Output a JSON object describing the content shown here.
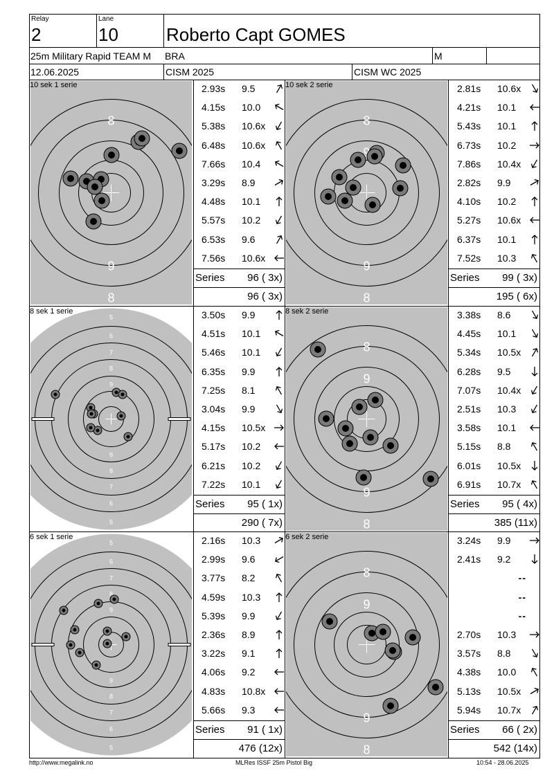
{
  "header": {
    "relay_label": "Relay",
    "relay_value": "2",
    "lane_label": "Lane",
    "lane_value": "10",
    "name": "Roberto Capt GOMES",
    "event": "25m Military Rapid TEAM M",
    "nation": "BRA",
    "gender": "M",
    "date": "12.06.2025",
    "competition": "CISM 2025",
    "championship": "CISM WC 2025"
  },
  "panels": [
    {
      "label": "10 sek 1 serie",
      "target": "big",
      "shots": [
        {
          "time": "2.93s",
          "score": "9.5",
          "arrow": "up-right"
        },
        {
          "time": "4.15s",
          "score": "10.0",
          "arrow": "left-up"
        },
        {
          "time": "5.38s",
          "score": "10.6x",
          "arrow": "down-left"
        },
        {
          "time": "6.48s",
          "score": "10.6x",
          "arrow": "up-left"
        },
        {
          "time": "7.66s",
          "score": "10.4",
          "arrow": "left-up"
        },
        {
          "time": "3.29s",
          "score": "8.9",
          "arrow": "right-up"
        },
        {
          "time": "4.48s",
          "score": "10.1",
          "arrow": "up"
        },
        {
          "time": "5.57s",
          "score": "10.2",
          "arrow": "down-left"
        },
        {
          "time": "6.53s",
          "score": "9.6",
          "arrow": "up-right"
        },
        {
          "time": "7.56s",
          "score": "10.6x",
          "arrow": "left"
        }
      ],
      "series_label": "Series",
      "series_value": "96 ( 3x)",
      "total": "96 ( 3x)"
    },
    {
      "label": "10 sek 2 serie",
      "target": "big",
      "shots": [
        {
          "time": "2.81s",
          "score": "10.6x",
          "arrow": "down-right"
        },
        {
          "time": "4.21s",
          "score": "10.1",
          "arrow": "left"
        },
        {
          "time": "5.43s",
          "score": "10.1",
          "arrow": "up"
        },
        {
          "time": "6.73s",
          "score": "10.2",
          "arrow": "right"
        },
        {
          "time": "7.86s",
          "score": "10.4x",
          "arrow": "down-left"
        },
        {
          "time": "2.82s",
          "score": "9.9",
          "arrow": "right-up"
        },
        {
          "time": "4.10s",
          "score": "10.2",
          "arrow": "up"
        },
        {
          "time": "5.27s",
          "score": "10.6x",
          "arrow": "left"
        },
        {
          "time": "6.37s",
          "score": "10.1",
          "arrow": "up"
        },
        {
          "time": "7.52s",
          "score": "10.3",
          "arrow": "up-left"
        }
      ],
      "series_label": "Series",
      "series_value": "99 ( 3x)",
      "total": "195 ( 6x)"
    },
    {
      "label": "8 sek 1 serie",
      "target": "small",
      "shots": [
        {
          "time": "3.50s",
          "score": "9.9",
          "arrow": "up"
        },
        {
          "time": "4.51s",
          "score": "10.1",
          "arrow": "left-up"
        },
        {
          "time": "5.46s",
          "score": "10.1",
          "arrow": "down-left"
        },
        {
          "time": "6.35s",
          "score": "9.9",
          "arrow": "up"
        },
        {
          "time": "7.25s",
          "score": "8.1",
          "arrow": "up-left"
        },
        {
          "time": "3.04s",
          "score": "9.9",
          "arrow": "down-right"
        },
        {
          "time": "4.15s",
          "score": "10.5x",
          "arrow": "right"
        },
        {
          "time": "5.17s",
          "score": "10.2",
          "arrow": "left"
        },
        {
          "time": "6.21s",
          "score": "10.2",
          "arrow": "down-left"
        },
        {
          "time": "7.22s",
          "score": "10.1",
          "arrow": "down-left"
        }
      ],
      "series_label": "Series",
      "series_value": "95 ( 1x)",
      "total": "290 ( 7x)"
    },
    {
      "label": "8 sek 2 serie",
      "target": "big",
      "shots": [
        {
          "time": "3.38s",
          "score": "8.6",
          "arrow": "down-right"
        },
        {
          "time": "4.45s",
          "score": "10.1",
          "arrow": "down-right"
        },
        {
          "time": "5.34s",
          "score": "10.5x",
          "arrow": "up-right"
        },
        {
          "time": "6.28s",
          "score": "9.5",
          "arrow": "down"
        },
        {
          "time": "7.07s",
          "score": "10.4x",
          "arrow": "down-left"
        },
        {
          "time": "2.51s",
          "score": "10.3",
          "arrow": "down-left"
        },
        {
          "time": "3.58s",
          "score": "10.1",
          "arrow": "left"
        },
        {
          "time": "5.15s",
          "score": "8.8",
          "arrow": "up-left"
        },
        {
          "time": "6.01s",
          "score": "10.5x",
          "arrow": "down"
        },
        {
          "time": "6.91s",
          "score": "10.7x",
          "arrow": "up-left"
        }
      ],
      "series_label": "Series",
      "series_value": "95 ( 4x)",
      "total": "385 (11x)"
    },
    {
      "label": "6 sek 1 serie",
      "target": "small",
      "shots": [
        {
          "time": "2.16s",
          "score": "10.3",
          "arrow": "right-up"
        },
        {
          "time": "2.99s",
          "score": "9.6",
          "arrow": "left-down"
        },
        {
          "time": "3.77s",
          "score": "8.2",
          "arrow": "up-left"
        },
        {
          "time": "4.59s",
          "score": "10.3",
          "arrow": "up"
        },
        {
          "time": "5.39s",
          "score": "9.9",
          "arrow": "down-left"
        },
        {
          "time": "2.36s",
          "score": "8.9",
          "arrow": "up"
        },
        {
          "time": "3.22s",
          "score": "9.1",
          "arrow": "up"
        },
        {
          "time": "4.06s",
          "score": "9.2",
          "arrow": "left"
        },
        {
          "time": "4.83s",
          "score": "10.8x",
          "arrow": "left"
        },
        {
          "time": "5.66s",
          "score": "9.3",
          "arrow": "left"
        }
      ],
      "series_label": "Series",
      "series_value": "91 ( 1x)",
      "total": "476 (12x)"
    },
    {
      "label": "6 sek 2 serie",
      "target": "big",
      "shots": [
        {
          "time": "3.24s",
          "score": "9.9",
          "arrow": "right"
        },
        {
          "time": "2.41s",
          "score": "9.2",
          "arrow": "down"
        },
        {
          "dash": "--"
        },
        {
          "dash": "--"
        },
        {
          "dash": "--"
        },
        {
          "time": "2.70s",
          "score": "10.3",
          "arrow": "right"
        },
        {
          "time": "3.57s",
          "score": "8.8",
          "arrow": "down-right"
        },
        {
          "time": "4.38s",
          "score": "10.0",
          "arrow": "up-left"
        },
        {
          "time": "5.13s",
          "score": "10.5x",
          "arrow": "right-up"
        },
        {
          "time": "5.94s",
          "score": "10.7x",
          "arrow": "up-right"
        }
      ],
      "series_label": "Series",
      "series_value": "66 ( 2x)",
      "total": "542 (14x)"
    }
  ],
  "big_target_labels": {
    "top8": "8",
    "top9": "9",
    "bottom9": "9",
    "bottom8": "8"
  },
  "small_target_labels": [
    "5",
    "6",
    "7",
    "8",
    "9"
  ],
  "footer": {
    "left": "http://www.megalink.no",
    "center": "MLRes ISSF 25m Pistol Big",
    "right": "10:54 - 28.06.2025"
  },
  "colors": {
    "target_bg": "#c0c0c0",
    "ring": "#000000",
    "text_white": "#ffffff",
    "hole_outer": "#7a7a7a",
    "hole_inner": "#000000"
  }
}
